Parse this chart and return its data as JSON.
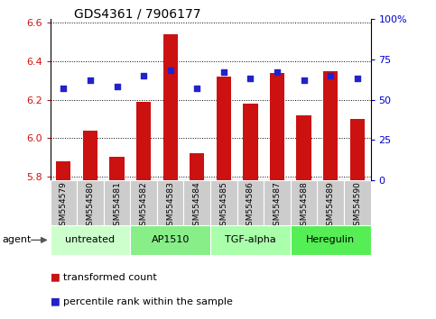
{
  "title": "GDS4361 / 7906177",
  "samples": [
    "GSM554579",
    "GSM554580",
    "GSM554581",
    "GSM554582",
    "GSM554583",
    "GSM554584",
    "GSM554585",
    "GSM554586",
    "GSM554587",
    "GSM554588",
    "GSM554589",
    "GSM554590"
  ],
  "bar_values": [
    5.88,
    6.04,
    5.9,
    6.19,
    6.54,
    5.92,
    6.32,
    6.18,
    6.34,
    6.12,
    6.35,
    6.1
  ],
  "dot_values_pct": [
    57,
    62,
    58,
    65,
    68,
    57,
    67,
    63,
    67,
    62,
    65,
    63
  ],
  "ylim": [
    5.78,
    6.62
  ],
  "yticks_left": [
    5.8,
    6.0,
    6.2,
    6.4,
    6.6
  ],
  "yticks_right": [
    0,
    25,
    50,
    75,
    100
  ],
  "bar_color": "#cc1111",
  "dot_color": "#2222cc",
  "bar_bottom": 5.78,
  "agent_groups": [
    {
      "label": "untreated",
      "start": 0,
      "end": 3
    },
    {
      "label": "AP1510",
      "start": 3,
      "end": 6
    },
    {
      "label": "TGF-alpha",
      "start": 6,
      "end": 9
    },
    {
      "label": "Heregulin",
      "start": 9,
      "end": 12
    }
  ],
  "group_colors": [
    "#ccffcc",
    "#88ee88",
    "#aaffaa",
    "#55ee55"
  ],
  "legend_bar_label": "transformed count",
  "legend_dot_label": "percentile rank within the sample",
  "xlabel_agent": "agent",
  "right_ymax_label": "100%",
  "background_color": "#ffffff",
  "tick_label_color_left": "#cc1111",
  "tick_label_color_right": "#0000cc",
  "grid_color": "#000000",
  "title_fontsize": 10,
  "tick_fontsize": 8,
  "sample_fontsize": 6.5,
  "legend_fontsize": 8,
  "agent_fontsize": 8
}
